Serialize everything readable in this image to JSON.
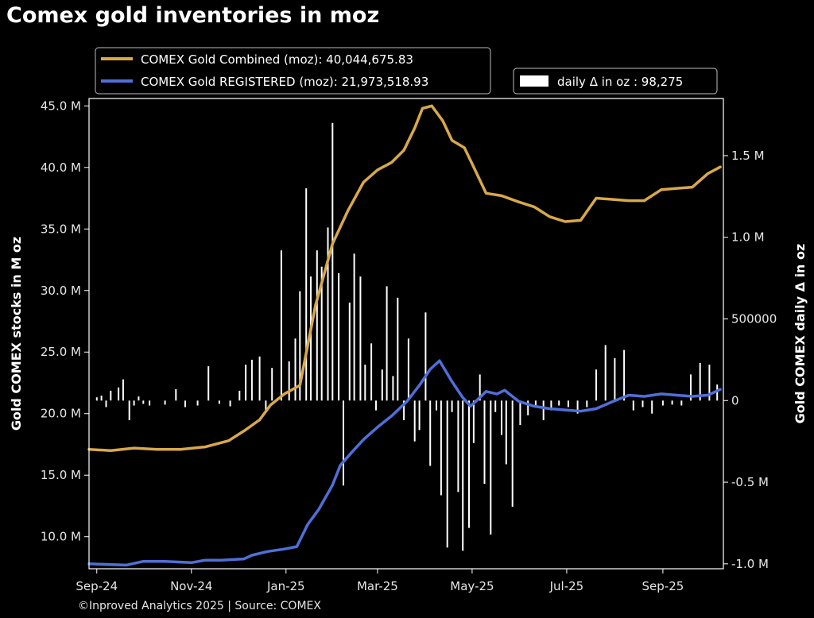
{
  "title": "Comex gold inventories in moz",
  "footer": "©Inproved Analytics 2025 | Source: COMEX",
  "colors": {
    "background": "#000000",
    "combined": "#d8a84a",
    "registered": "#4f6fd8",
    "bars": "#ffffff",
    "axis": "#ffffff"
  },
  "chart_data": {
    "type": "line",
    "title": "Comex gold inventories in moz",
    "x_tick_labels": [
      "Sep-24",
      "Nov-24",
      "Jan-25",
      "Mar-25",
      "May-25",
      "Jul-25",
      "Sep-25"
    ],
    "x_tick_dates": [
      "2024-09-01",
      "2024-11-01",
      "2025-01-01",
      "2025-03-01",
      "2025-05-01",
      "2025-07-01",
      "2025-09-01"
    ],
    "x_range": [
      "2024-08-27",
      "2025-10-10"
    ],
    "left_axis": {
      "label": "Gold COMEX stocks in M oz",
      "ylim": [
        7.4,
        45.6
      ],
      "ticks": [
        10,
        15,
        20,
        25,
        30,
        35,
        40,
        45
      ],
      "tick_labels": [
        "10.0 M",
        "15.0 M",
        "20.0 M",
        "25.0 M",
        "30.0 M",
        "35.0 M",
        "40.0 M",
        "45.0 M"
      ]
    },
    "right_axis": {
      "label": "Gold COMEX daily Δ in oz",
      "ylim": [
        -1030000,
        1850000
      ],
      "ticks": [
        -1000000,
        -500000,
        0,
        500000,
        1000000,
        1500000
      ],
      "tick_labels": [
        "-1.0 M",
        "-0.5 M",
        "0",
        "500000",
        "1.0 M",
        "1.5 M"
      ]
    },
    "legend": {
      "placement": "top",
      "combined_label": "COMEX Gold Combined (moz): 40,044,675.83",
      "registered_label": "COMEX Gold REGISTERED (moz): 21,973,518.93",
      "bars_label": "daily Δ in oz : 98,275"
    },
    "series": [
      {
        "name": "COMEX Gold Combined (moz)",
        "axis": "left",
        "x": [
          "2024-08-27",
          "2024-09-10",
          "2024-09-25",
          "2024-10-10",
          "2024-10-25",
          "2024-11-10",
          "2024-11-25",
          "2024-12-05",
          "2024-12-15",
          "2024-12-22",
          "2024-12-31",
          "2025-01-10",
          "2025-01-20",
          "2025-01-31",
          "2025-02-10",
          "2025-02-20",
          "2025-03-01",
          "2025-03-10",
          "2025-03-18",
          "2025-03-25",
          "2025-03-30",
          "2025-04-05",
          "2025-04-12",
          "2025-04-18",
          "2025-04-26",
          "2025-05-01",
          "2025-05-10",
          "2025-05-20",
          "2025-05-31",
          "2025-06-10",
          "2025-06-20",
          "2025-06-30",
          "2025-07-10",
          "2025-07-20",
          "2025-07-31",
          "2025-08-10",
          "2025-08-20",
          "2025-08-31",
          "2025-09-10",
          "2025-09-20",
          "2025-09-30",
          "2025-10-08"
        ],
        "values": [
          17.1,
          17.0,
          17.2,
          17.1,
          17.1,
          17.3,
          17.8,
          18.6,
          19.5,
          20.7,
          21.6,
          22.3,
          28.8,
          33.8,
          36.5,
          38.8,
          39.8,
          40.4,
          41.4,
          43.2,
          44.8,
          45.0,
          43.8,
          42.2,
          41.6,
          40.3,
          37.9,
          37.7,
          37.2,
          36.8,
          36.0,
          35.6,
          35.7,
          37.5,
          37.4,
          37.3,
          37.3,
          38.2,
          38.3,
          38.4,
          39.5,
          40.04
        ]
      },
      {
        "name": "COMEX Gold REGISTERED (moz)",
        "axis": "left",
        "x": [
          "2024-08-27",
          "2024-09-20",
          "2024-10-01",
          "2024-10-15",
          "2024-11-01",
          "2024-11-10",
          "2024-11-20",
          "2024-12-05",
          "2024-12-10",
          "2024-12-20",
          "2024-12-31",
          "2025-01-08",
          "2025-01-15",
          "2025-01-22",
          "2025-01-31",
          "2025-02-05",
          "2025-02-12",
          "2025-02-20",
          "2025-03-01",
          "2025-03-10",
          "2025-03-20",
          "2025-03-28",
          "2025-04-04",
          "2025-04-10",
          "2025-04-18",
          "2025-04-25",
          "2025-04-30",
          "2025-05-10",
          "2025-05-17",
          "2025-05-22",
          "2025-05-31",
          "2025-06-10",
          "2025-06-20",
          "2025-06-30",
          "2025-07-10",
          "2025-07-20",
          "2025-07-31",
          "2025-08-10",
          "2025-08-20",
          "2025-08-31",
          "2025-09-10",
          "2025-09-20",
          "2025-09-30",
          "2025-10-08"
        ],
        "values": [
          7.8,
          7.7,
          8.0,
          8.0,
          7.9,
          8.1,
          8.1,
          8.2,
          8.5,
          8.8,
          9.0,
          9.2,
          11.0,
          12.2,
          14.2,
          15.8,
          16.8,
          17.9,
          18.9,
          19.8,
          21.0,
          22.3,
          23.6,
          24.3,
          22.6,
          21.3,
          20.6,
          21.8,
          21.6,
          21.9,
          21.0,
          20.6,
          20.4,
          20.3,
          20.2,
          20.4,
          21.0,
          21.5,
          21.4,
          21.6,
          21.5,
          21.4,
          21.5,
          21.97
        ]
      },
      {
        "name": "daily Δ in oz",
        "type": "bar",
        "axis": "right",
        "x": [
          "2024-09-01",
          "2024-09-04",
          "2024-09-07",
          "2024-09-10",
          "2024-09-15",
          "2024-09-18",
          "2024-09-22",
          "2024-09-25",
          "2024-09-28",
          "2024-10-01",
          "2024-10-05",
          "2024-10-15",
          "2024-10-22",
          "2024-10-28",
          "2024-11-05",
          "2024-11-12",
          "2024-11-19",
          "2024-11-26",
          "2024-12-02",
          "2024-12-06",
          "2024-12-10",
          "2024-12-15",
          "2024-12-19",
          "2024-12-23",
          "2024-12-29",
          "2025-01-03",
          "2025-01-07",
          "2025-01-10",
          "2025-01-14",
          "2025-01-17",
          "2025-01-21",
          "2025-01-24",
          "2025-01-28",
          "2025-01-31",
          "2025-02-04",
          "2025-02-07",
          "2025-02-11",
          "2025-02-14",
          "2025-02-18",
          "2025-02-21",
          "2025-02-25",
          "2025-02-28",
          "2025-03-04",
          "2025-03-07",
          "2025-03-11",
          "2025-03-14",
          "2025-03-18",
          "2025-03-21",
          "2025-03-25",
          "2025-03-28",
          "2025-04-01",
          "2025-04-04",
          "2025-04-08",
          "2025-04-11",
          "2025-04-15",
          "2025-04-18",
          "2025-04-22",
          "2025-04-25",
          "2025-04-29",
          "2025-05-02",
          "2025-05-06",
          "2025-05-09",
          "2025-05-13",
          "2025-05-16",
          "2025-05-20",
          "2025-05-23",
          "2025-05-27",
          "2025-06-01",
          "2025-06-06",
          "2025-06-11",
          "2025-06-16",
          "2025-06-21",
          "2025-06-26",
          "2025-07-02",
          "2025-07-08",
          "2025-07-14",
          "2025-07-20",
          "2025-07-26",
          "2025-08-01",
          "2025-08-07",
          "2025-08-13",
          "2025-08-19",
          "2025-08-25",
          "2025-09-01",
          "2025-09-07",
          "2025-09-13",
          "2025-09-19",
          "2025-09-25",
          "2025-10-01",
          "2025-10-06"
        ],
        "values": [
          20000,
          30000,
          -40000,
          60000,
          80000,
          130000,
          -120000,
          -30000,
          25000,
          -20000,
          -30000,
          -25000,
          70000,
          -40000,
          -30000,
          210000,
          -20000,
          -35000,
          60000,
          220000,
          250000,
          270000,
          -70000,
          200000,
          920000,
          240000,
          380000,
          670000,
          1300000,
          760000,
          920000,
          820000,
          1060000,
          1700000,
          780000,
          -520000,
          600000,
          900000,
          760000,
          220000,
          350000,
          -60000,
          190000,
          700000,
          150000,
          630000,
          -120000,
          380000,
          -250000,
          -180000,
          540000,
          -400000,
          -60000,
          -580000,
          -900000,
          -70000,
          -560000,
          -920000,
          -780000,
          -260000,
          160000,
          -510000,
          -820000,
          -70000,
          -210000,
          -390000,
          -650000,
          -150000,
          -90000,
          -40000,
          -120000,
          -60000,
          -30000,
          -40000,
          -80000,
          -40000,
          190000,
          340000,
          260000,
          310000,
          -60000,
          -40000,
          -80000,
          -30000,
          -25000,
          -30000,
          160000,
          230000,
          220000,
          98275
        ]
      }
    ]
  }
}
